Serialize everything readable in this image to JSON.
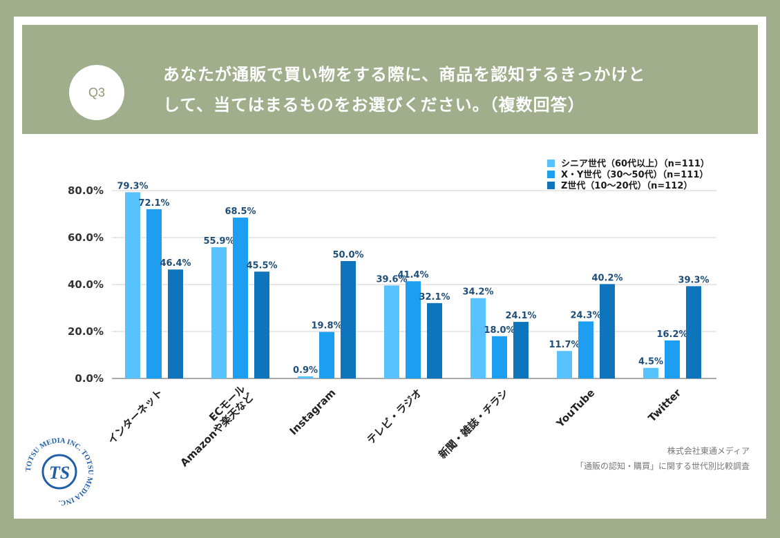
{
  "header": {
    "badge": "Q3",
    "question_line1": "あなたが通販で買い物をする際に、商品を認知するきっかけと",
    "question_line2": "して、当てはまるものをお選びください。（複数回答）"
  },
  "footer": {
    "company": "株式会社東通メディア",
    "survey": "「通販の認知・購買」に関する世代別比較調査"
  },
  "logo": {
    "text": "TOTSU MEDIA INC. TOTSU MEDIA INC.",
    "mark": "TS"
  },
  "colors": {
    "series1": "#57c2fb",
    "series2": "#1d9ef0",
    "series3": "#0e74bb",
    "label": "#1f4e79",
    "grid": "#d0d0d0"
  },
  "chart_data": {
    "type": "bar",
    "categories": [
      "インターネット",
      "ECモール\nAmazonや楽天など",
      "Instagram",
      "テレビ・ラジオ",
      "新聞・雑誌・チラシ",
      "YouTube",
      "Twitter"
    ],
    "series": [
      {
        "name": "シニア世代（60代以上）（n=111）",
        "values": [
          79.3,
          55.9,
          0.9,
          39.6,
          34.2,
          11.7,
          4.5
        ]
      },
      {
        "name": "X・Y世代（30〜50代）（n=111）",
        "values": [
          72.1,
          68.5,
          19.8,
          41.4,
          18.0,
          24.3,
          16.2
        ]
      },
      {
        "name": "Z世代（10〜20代）（n=112）",
        "values": [
          46.4,
          45.5,
          50.0,
          32.1,
          24.1,
          40.2,
          39.3
        ]
      }
    ],
    "yticks": [
      "0.0%",
      "20.0%",
      "40.0%",
      "60.0%",
      "80.0%"
    ],
    "ylim": [
      0,
      80
    ],
    "legend_position": "top-right",
    "grid": true
  }
}
